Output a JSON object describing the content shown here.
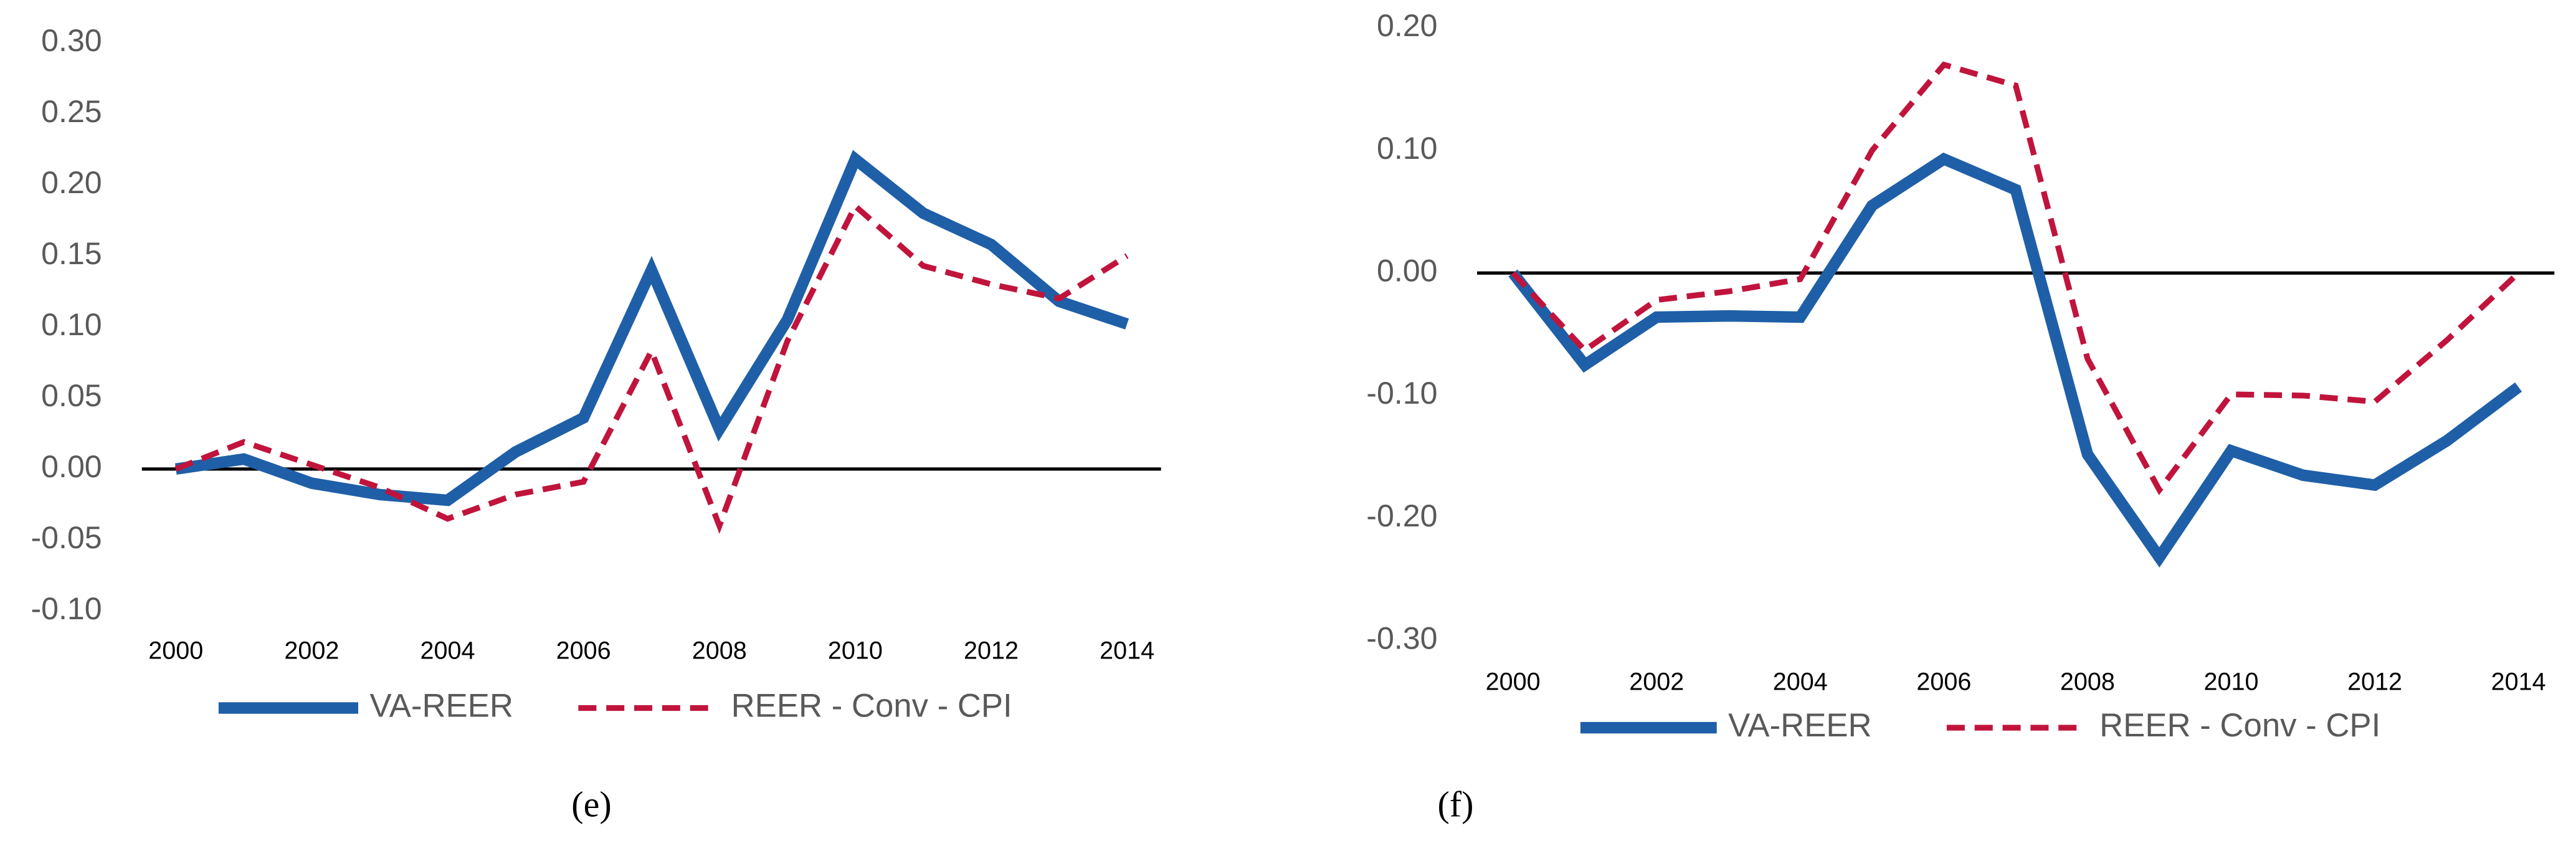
{
  "chart_data": [
    {
      "type": "line",
      "caption": "(e)",
      "legend": "bottom",
      "grid": false,
      "x": [
        2000,
        2001,
        2002,
        2003,
        2004,
        2005,
        2006,
        2007,
        2008,
        2009,
        2010,
        2011,
        2012,
        2013,
        2014
      ],
      "xlim": [
        1999.5,
        2014.5
      ],
      "xticks": [
        2000,
        2002,
        2004,
        2006,
        2008,
        2010,
        2012,
        2014
      ],
      "ylim": [
        -0.1,
        0.3
      ],
      "yticks": [
        {
          "value": -0.1,
          "label": "-0.10"
        },
        {
          "value": -0.05,
          "label": "-0.05"
        },
        {
          "value": 0,
          "label": "0.00"
        },
        {
          "value": 0.05,
          "label": "0.05"
        },
        {
          "value": 0.1,
          "label": "0.10"
        },
        {
          "value": 0.15,
          "label": "0.15"
        },
        {
          "value": 0.2,
          "label": "0.20"
        },
        {
          "value": 0.25,
          "label": "0.25"
        },
        {
          "value": 0.3,
          "label": "0.30"
        }
      ],
      "series": [
        {
          "name": "VA-REER",
          "color": "#1f5fa8",
          "dashed": false,
          "values": [
            0.0,
            0.007,
            -0.01,
            -0.018,
            -0.022,
            0.012,
            0.036,
            0.14,
            0.028,
            0.105,
            0.218,
            0.18,
            0.158,
            0.118,
            0.102
          ]
        },
        {
          "name": "REER - Conv - CPI",
          "color": "#c0143c",
          "dashed": true,
          "values": [
            0.0,
            0.019,
            0.003,
            -0.013,
            -0.035,
            -0.018,
            -0.009,
            0.083,
            -0.04,
            0.09,
            0.185,
            0.143,
            0.13,
            0.12,
            0.15
          ]
        }
      ]
    },
    {
      "type": "line",
      "caption": "(f)",
      "legend": "bottom",
      "grid": false,
      "x": [
        2000,
        2001,
        2002,
        2003,
        2004,
        2005,
        2006,
        2007,
        2008,
        2009,
        2010,
        2011,
        2012,
        2013,
        2014
      ],
      "xlim": [
        1999.5,
        2014.5
      ],
      "xticks": [
        2000,
        2002,
        2004,
        2006,
        2008,
        2010,
        2012,
        2014
      ],
      "ylim": [
        -0.3,
        0.2
      ],
      "yticks": [
        {
          "value": -0.3,
          "label": "-0.30"
        },
        {
          "value": -0.2,
          "label": "-0.20"
        },
        {
          "value": -0.1,
          "label": "-0.10"
        },
        {
          "value": 0,
          "label": "0.00"
        },
        {
          "value": 0.1,
          "label": "0.10"
        },
        {
          "value": 0.2,
          "label": "0.20"
        }
      ],
      "series": [
        {
          "name": "VA-REER",
          "color": "#1f5fa8",
          "dashed": false,
          "values": [
            0.0,
            -0.075,
            -0.036,
            -0.035,
            -0.036,
            0.055,
            0.093,
            0.068,
            -0.148,
            -0.232,
            -0.145,
            -0.165,
            -0.173,
            -0.137,
            -0.093
          ]
        },
        {
          "name": "REER - Conv - CPI",
          "color": "#c0143c",
          "dashed": true,
          "values": [
            0.0,
            -0.063,
            -0.022,
            -0.015,
            -0.005,
            0.1,
            0.17,
            0.153,
            -0.07,
            -0.177,
            -0.099,
            -0.1,
            -0.105,
            -0.055,
            0.0
          ]
        }
      ]
    }
  ]
}
